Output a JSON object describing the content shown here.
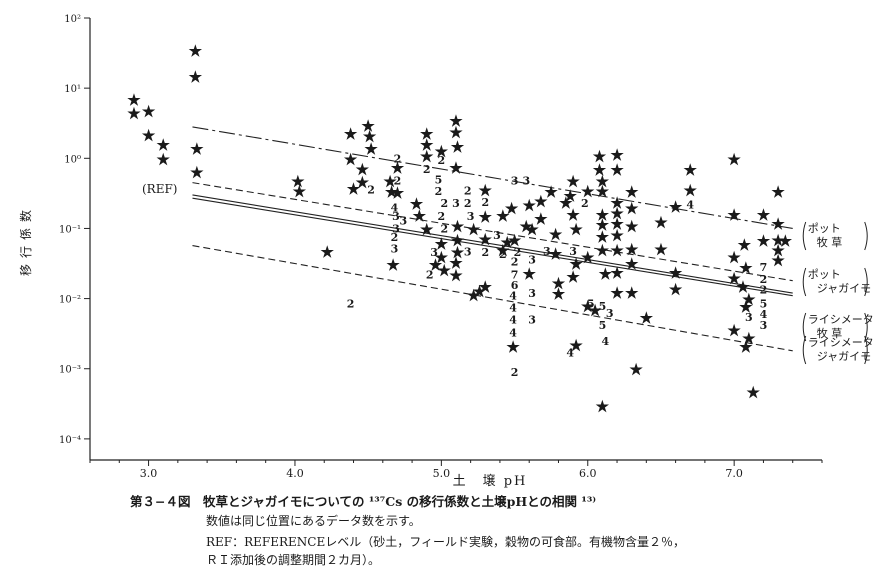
{
  "chart_data": {
    "type": "scatter",
    "ylabel": "移行係数",
    "xlabel": "土　壌 pH",
    "x_ticks": [
      "3.0",
      "4.0",
      "5.0",
      "6.0",
      "7.0"
    ],
    "y_ticks": [
      "10²",
      "10¹",
      "10⁰",
      "10⁻¹",
      "10⁻²",
      "10⁻³",
      "10⁻⁴"
    ],
    "xlim": [
      2.6,
      7.6
    ],
    "ylim": [
      5e-05,
      100
    ],
    "y_scale": "log",
    "ref_label": "(REF)",
    "lines": [
      {
        "label_lines": [
          "ポット",
          "牧 草"
        ],
        "dash": "dashdot",
        "x": [
          3.3,
          7.4
        ],
        "y": [
          2.8,
          0.1
        ]
      },
      {
        "label_lines": [
          "ポット",
          "ジャガイモ"
        ],
        "dash": "dashed",
        "x": [
          3.3,
          7.4
        ],
        "y": [
          0.45,
          0.018
        ]
      },
      {
        "label_lines": [
          "ライシメータ",
          "牧 草"
        ],
        "dash": "solid",
        "x": [
          3.3,
          7.4
        ],
        "y": [
          0.3,
          0.012
        ]
      },
      {
        "label_lines": [],
        "dash": "solid",
        "x": [
          3.3,
          7.4
        ],
        "y": [
          0.27,
          0.011
        ]
      },
      {
        "label_lines": [
          "ライシメータ",
          "ジャガイモ"
        ],
        "dash": "dashed",
        "x": [
          3.3,
          7.4
        ],
        "y": [
          0.057,
          0.0018
        ]
      }
    ],
    "points": [
      {
        "x": 2.9,
        "y": 7,
        "m": "*"
      },
      {
        "x": 2.9,
        "y": 4.5,
        "m": "*"
      },
      {
        "x": 3.0,
        "y": 4.8,
        "m": "*"
      },
      {
        "x": 3.0,
        "y": 2.2,
        "m": "*"
      },
      {
        "x": 3.1,
        "y": 1.6,
        "m": "*"
      },
      {
        "x": 3.1,
        "y": 1.0,
        "m": "*"
      },
      {
        "x": 3.32,
        "y": 35,
        "m": "*"
      },
      {
        "x": 3.32,
        "y": 15,
        "m": "*"
      },
      {
        "x": 3.33,
        "y": 1.4,
        "m": "*"
      },
      {
        "x": 3.33,
        "y": 0.65,
        "m": "*"
      },
      {
        "x": 4.02,
        "y": 0.48,
        "m": "*"
      },
      {
        "x": 4.03,
        "y": 0.35,
        "m": "*"
      },
      {
        "x": 4.22,
        "y": 0.048,
        "m": "*"
      },
      {
        "x": 4.38,
        "y": 0.0085,
        "m": "2"
      },
      {
        "x": 4.38,
        "y": 2.3,
        "m": "*"
      },
      {
        "x": 4.38,
        "y": 1.0,
        "m": "*"
      },
      {
        "x": 4.4,
        "y": 0.38,
        "m": "*"
      },
      {
        "x": 4.46,
        "y": 0.72,
        "m": "*"
      },
      {
        "x": 4.46,
        "y": 0.47,
        "m": "*"
      },
      {
        "x": 4.5,
        "y": 3.0,
        "m": "*"
      },
      {
        "x": 4.51,
        "y": 2.1,
        "m": "*"
      },
      {
        "x": 4.52,
        "y": 1.4,
        "m": "*"
      },
      {
        "x": 4.52,
        "y": 0.36,
        "m": "2"
      },
      {
        "x": 4.65,
        "y": 0.48,
        "m": "*"
      },
      {
        "x": 4.66,
        "y": 0.34,
        "m": "*"
      },
      {
        "x": 4.7,
        "y": 1.0,
        "m": "2"
      },
      {
        "x": 4.7,
        "y": 0.75,
        "m": "*"
      },
      {
        "x": 4.7,
        "y": 0.48,
        "m": "2"
      },
      {
        "x": 4.7,
        "y": 0.33,
        "m": "*"
      },
      {
        "x": 4.68,
        "y": 0.2,
        "m": "4"
      },
      {
        "x": 4.69,
        "y": 0.15,
        "m": "3"
      },
      {
        "x": 4.69,
        "y": 0.1,
        "m": "3"
      },
      {
        "x": 4.68,
        "y": 0.075,
        "m": "2"
      },
      {
        "x": 4.68,
        "y": 0.052,
        "m": "3"
      },
      {
        "x": 4.67,
        "y": 0.031,
        "m": "*"
      },
      {
        "x": 4.74,
        "y": 0.13,
        "m": "3"
      },
      {
        "x": 4.83,
        "y": 0.23,
        "m": "*"
      },
      {
        "x": 4.85,
        "y": 0.155,
        "m": "*"
      },
      {
        "x": 4.9,
        "y": 2.3,
        "m": "*"
      },
      {
        "x": 4.9,
        "y": 1.6,
        "m": "*"
      },
      {
        "x": 4.9,
        "y": 1.1,
        "m": "*"
      },
      {
        "x": 4.9,
        "y": 0.7,
        "m": "2"
      },
      {
        "x": 4.9,
        "y": 0.1,
        "m": "*"
      },
      {
        "x": 5.0,
        "y": 1.3,
        "m": "*"
      },
      {
        "x": 5.0,
        "y": 0.95,
        "m": "2"
      },
      {
        "x": 4.98,
        "y": 0.5,
        "m": "5"
      },
      {
        "x": 4.98,
        "y": 0.34,
        "m": "2"
      },
      {
        "x": 5.02,
        "y": 0.23,
        "m": "2"
      },
      {
        "x": 5.0,
        "y": 0.15,
        "m": "2"
      },
      {
        "x": 5.02,
        "y": 0.1,
        "m": "2"
      },
      {
        "x": 5.0,
        "y": 0.062,
        "m": "*"
      },
      {
        "x": 4.95,
        "y": 0.046,
        "m": "3"
      },
      {
        "x": 4.96,
        "y": 0.031,
        "m": "*"
      },
      {
        "x": 4.92,
        "y": 0.022,
        "m": "2"
      },
      {
        "x": 5.02,
        "y": 0.026,
        "m": "*"
      },
      {
        "x": 5.0,
        "y": 0.04,
        "m": "*"
      },
      {
        "x": 5.1,
        "y": 3.5,
        "m": "*"
      },
      {
        "x": 5.1,
        "y": 2.4,
        "m": "*"
      },
      {
        "x": 5.11,
        "y": 1.5,
        "m": "*"
      },
      {
        "x": 5.1,
        "y": 0.75,
        "m": "*"
      },
      {
        "x": 5.1,
        "y": 0.23,
        "m": "3"
      },
      {
        "x": 5.11,
        "y": 0.11,
        "m": "*"
      },
      {
        "x": 5.11,
        "y": 0.07,
        "m": "*"
      },
      {
        "x": 5.11,
        "y": 0.047,
        "m": "*"
      },
      {
        "x": 5.1,
        "y": 0.033,
        "m": "*"
      },
      {
        "x": 5.1,
        "y": 0.022,
        "m": "*"
      },
      {
        "x": 5.18,
        "y": 0.35,
        "m": "2"
      },
      {
        "x": 5.18,
        "y": 0.23,
        "m": "2"
      },
      {
        "x": 5.2,
        "y": 0.15,
        "m": "3"
      },
      {
        "x": 5.22,
        "y": 0.1,
        "m": "*"
      },
      {
        "x": 5.18,
        "y": 0.047,
        "m": "3"
      },
      {
        "x": 5.22,
        "y": 0.0115,
        "m": "*"
      },
      {
        "x": 5.26,
        "y": 0.013,
        "m": "*"
      },
      {
        "x": 5.3,
        "y": 0.24,
        "m": "2"
      },
      {
        "x": 5.3,
        "y": 0.36,
        "m": "*"
      },
      {
        "x": 5.3,
        "y": 0.15,
        "m": "*"
      },
      {
        "x": 5.3,
        "y": 0.072,
        "m": "*"
      },
      {
        "x": 5.3,
        "y": 0.046,
        "m": "2"
      },
      {
        "x": 5.3,
        "y": 0.015,
        "m": "*"
      },
      {
        "x": 5.38,
        "y": 0.08,
        "m": "3"
      },
      {
        "x": 5.42,
        "y": 0.05,
        "m": "*"
      },
      {
        "x": 5.42,
        "y": 0.043,
        "m": "2"
      },
      {
        "x": 5.42,
        "y": 0.155,
        "m": "*"
      },
      {
        "x": 5.45,
        "y": 0.065,
        "m": "*"
      },
      {
        "x": 5.5,
        "y": 0.48,
        "m": "3"
      },
      {
        "x": 5.58,
        "y": 0.48,
        "m": "3"
      },
      {
        "x": 5.48,
        "y": 0.2,
        "m": "*"
      },
      {
        "x": 5.5,
        "y": 0.07,
        "m": "*"
      },
      {
        "x": 5.52,
        "y": 0.046,
        "m": "2"
      },
      {
        "x": 5.5,
        "y": 0.034,
        "m": "2"
      },
      {
        "x": 5.5,
        "y": 0.022,
        "m": "7"
      },
      {
        "x": 5.5,
        "y": 0.0155,
        "m": "6"
      },
      {
        "x": 5.49,
        "y": 0.011,
        "m": "4"
      },
      {
        "x": 5.49,
        "y": 0.0075,
        "m": "4"
      },
      {
        "x": 5.49,
        "y": 0.005,
        "m": "4"
      },
      {
        "x": 5.49,
        "y": 0.0033,
        "m": "4"
      },
      {
        "x": 5.49,
        "y": 0.0021,
        "m": "*"
      },
      {
        "x": 5.5,
        "y": 0.0009,
        "m": "2"
      },
      {
        "x": 5.58,
        "y": 0.11,
        "m": "*"
      },
      {
        "x": 5.62,
        "y": 0.1,
        "m": "*"
      },
      {
        "x": 5.6,
        "y": 0.22,
        "m": "*"
      },
      {
        "x": 5.62,
        "y": 0.036,
        "m": "3"
      },
      {
        "x": 5.6,
        "y": 0.023,
        "m": "*"
      },
      {
        "x": 5.62,
        "y": 0.012,
        "m": "3"
      },
      {
        "x": 5.62,
        "y": 0.005,
        "m": "3"
      },
      {
        "x": 5.68,
        "y": 0.25,
        "m": "*"
      },
      {
        "x": 5.68,
        "y": 0.14,
        "m": "*"
      },
      {
        "x": 5.72,
        "y": 0.048,
        "m": "3"
      },
      {
        "x": 5.75,
        "y": 0.34,
        "m": "*"
      },
      {
        "x": 5.78,
        "y": 0.085,
        "m": "*"
      },
      {
        "x": 5.78,
        "y": 0.045,
        "m": "*"
      },
      {
        "x": 5.8,
        "y": 0.017,
        "m": "*"
      },
      {
        "x": 5.8,
        "y": 0.012,
        "m": "*"
      },
      {
        "x": 5.85,
        "y": 0.24,
        "m": "*"
      },
      {
        "x": 5.9,
        "y": 0.48,
        "m": "*"
      },
      {
        "x": 5.88,
        "y": 0.3,
        "m": "*"
      },
      {
        "x": 5.9,
        "y": 0.16,
        "m": "*"
      },
      {
        "x": 5.92,
        "y": 0.1,
        "m": "*"
      },
      {
        "x": 5.9,
        "y": 0.048,
        "m": "3"
      },
      {
        "x": 5.92,
        "y": 0.032,
        "m": "*"
      },
      {
        "x": 5.9,
        "y": 0.021,
        "m": "*"
      },
      {
        "x": 5.88,
        "y": 0.0017,
        "m": "4"
      },
      {
        "x": 5.92,
        "y": 0.0022,
        "m": "*"
      },
      {
        "x": 5.98,
        "y": 0.23,
        "m": "2"
      },
      {
        "x": 6.0,
        "y": 0.35,
        "m": "*"
      },
      {
        "x": 6.0,
        "y": 0.04,
        "m": "*"
      },
      {
        "x": 6.02,
        "y": 0.0085,
        "m": "5"
      },
      {
        "x": 6.05,
        "y": 0.007,
        "m": "*"
      },
      {
        "x": 6.0,
        "y": 0.008,
        "m": "*"
      },
      {
        "x": 6.08,
        "y": 1.1,
        "m": "*"
      },
      {
        "x": 6.08,
        "y": 0.7,
        "m": "*"
      },
      {
        "x": 6.1,
        "y": 0.48,
        "m": "*"
      },
      {
        "x": 6.1,
        "y": 0.35,
        "m": "*"
      },
      {
        "x": 6.1,
        "y": 0.16,
        "m": "*"
      },
      {
        "x": 6.1,
        "y": 0.115,
        "m": "*"
      },
      {
        "x": 6.1,
        "y": 0.078,
        "m": "*"
      },
      {
        "x": 6.1,
        "y": 0.05,
        "m": "*"
      },
      {
        "x": 6.12,
        "y": 0.023,
        "m": "*"
      },
      {
        "x": 6.1,
        "y": 0.0078,
        "m": "5"
      },
      {
        "x": 6.1,
        "y": 0.0042,
        "m": "5"
      },
      {
        "x": 6.12,
        "y": 0.0025,
        "m": "4"
      },
      {
        "x": 6.1,
        "y": 0.0003,
        "m": "*"
      },
      {
        "x": 6.15,
        "y": 0.0062,
        "m": "3"
      },
      {
        "x": 6.2,
        "y": 1.15,
        "m": "*"
      },
      {
        "x": 6.2,
        "y": 0.7,
        "m": "*"
      },
      {
        "x": 6.2,
        "y": 0.24,
        "m": "*"
      },
      {
        "x": 6.2,
        "y": 0.17,
        "m": "*"
      },
      {
        "x": 6.2,
        "y": 0.12,
        "m": "*"
      },
      {
        "x": 6.2,
        "y": 0.082,
        "m": "*"
      },
      {
        "x": 6.2,
        "y": 0.05,
        "m": "*"
      },
      {
        "x": 6.2,
        "y": 0.024,
        "m": "*"
      },
      {
        "x": 6.2,
        "y": 0.0125,
        "m": "*"
      },
      {
        "x": 6.3,
        "y": 0.34,
        "m": "*"
      },
      {
        "x": 6.3,
        "y": 0.2,
        "m": "*"
      },
      {
        "x": 6.3,
        "y": 0.11,
        "m": "*"
      },
      {
        "x": 6.3,
        "y": 0.052,
        "m": "*"
      },
      {
        "x": 6.3,
        "y": 0.032,
        "m": "*"
      },
      {
        "x": 6.3,
        "y": 0.0125,
        "m": "*"
      },
      {
        "x": 6.33,
        "y": 0.001,
        "m": "*"
      },
      {
        "x": 6.4,
        "y": 0.0055,
        "m": "*"
      },
      {
        "x": 6.5,
        "y": 0.125,
        "m": "*"
      },
      {
        "x": 6.5,
        "y": 0.052,
        "m": "*"
      },
      {
        "x": 6.6,
        "y": 0.21,
        "m": "*"
      },
      {
        "x": 6.6,
        "y": 0.024,
        "m": "*"
      },
      {
        "x": 6.6,
        "y": 0.014,
        "m": "*"
      },
      {
        "x": 6.7,
        "y": 0.7,
        "m": "*"
      },
      {
        "x": 6.7,
        "y": 0.36,
        "m": "*"
      },
      {
        "x": 6.7,
        "y": 0.22,
        "m": "4"
      },
      {
        "x": 7.0,
        "y": 1.0,
        "m": "*"
      },
      {
        "x": 7.0,
        "y": 0.16,
        "m": "*"
      },
      {
        "x": 7.0,
        "y": 0.04,
        "m": "*"
      },
      {
        "x": 7.0,
        "y": 0.02,
        "m": "*"
      },
      {
        "x": 7.0,
        "y": 0.0036,
        "m": "*"
      },
      {
        "x": 7.07,
        "y": 0.06,
        "m": "*"
      },
      {
        "x": 7.08,
        "y": 0.028,
        "m": "*"
      },
      {
        "x": 7.1,
        "y": 0.01,
        "m": "*"
      },
      {
        "x": 7.08,
        "y": 0.0078,
        "m": "*"
      },
      {
        "x": 7.1,
        "y": 0.0055,
        "m": "3"
      },
      {
        "x": 7.1,
        "y": 0.0028,
        "m": "*"
      },
      {
        "x": 7.13,
        "y": 0.00047,
        "m": "*"
      },
      {
        "x": 7.08,
        "y": 0.0021,
        "m": "*"
      },
      {
        "x": 7.06,
        "y": 0.015,
        "m": "*"
      },
      {
        "x": 7.2,
        "y": 0.16,
        "m": "*"
      },
      {
        "x": 7.2,
        "y": 0.068,
        "m": "*"
      },
      {
        "x": 7.2,
        "y": 0.028,
        "m": "7"
      },
      {
        "x": 7.2,
        "y": 0.019,
        "m": "2"
      },
      {
        "x": 7.2,
        "y": 0.0135,
        "m": "2"
      },
      {
        "x": 7.2,
        "y": 0.0085,
        "m": "5"
      },
      {
        "x": 7.2,
        "y": 0.006,
        "m": "4"
      },
      {
        "x": 7.2,
        "y": 0.0042,
        "m": "3"
      },
      {
        "x": 7.3,
        "y": 0.34,
        "m": "*"
      },
      {
        "x": 7.3,
        "y": 0.12,
        "m": "*"
      },
      {
        "x": 7.3,
        "y": 0.07,
        "m": "*"
      },
      {
        "x": 7.3,
        "y": 0.05,
        "m": "*"
      },
      {
        "x": 7.3,
        "y": 0.036,
        "m": "*"
      },
      {
        "x": 7.35,
        "y": 0.068,
        "m": "*"
      }
    ]
  },
  "caption": {
    "title": "第３−４図　牧草とジャガイモについての ¹³⁷Cs の移行係数と土壌pHとの相関 ¹³⁾",
    "note1": "数値は同じ位置にあるデータ数を示す。",
    "note2": "REF：REFERENCEレベル（砂土，フィールド実験，穀物の可食部。有機物含量２％，",
    "note3": "ＲＩ添加後の調整期間２カ月）。"
  }
}
